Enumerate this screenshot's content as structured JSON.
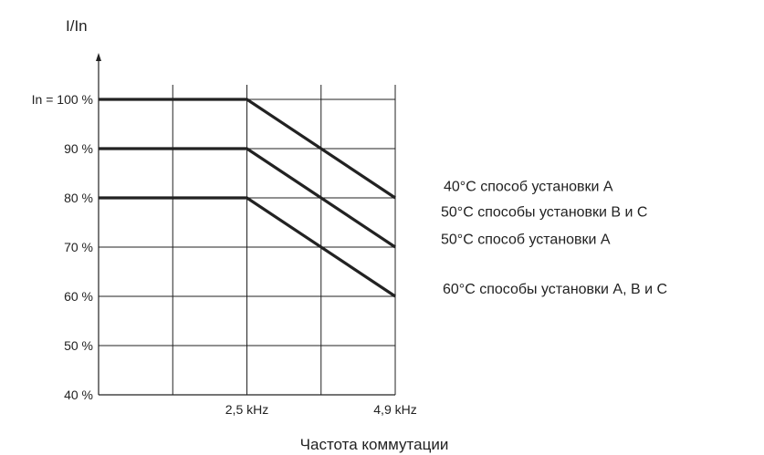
{
  "chart_data": {
    "type": "line",
    "title": "",
    "ylabel": "I/In",
    "xlabel": "Частота коммутации",
    "x_ticks": [
      {
        "label": "",
        "x": 0
      },
      {
        "label": "",
        "x": 1
      },
      {
        "label": "2,5 kHz",
        "x": 2
      },
      {
        "label": "",
        "x": 3
      },
      {
        "label": "4,9 kHz",
        "x": 4
      }
    ],
    "xlim": [
      0,
      4
    ],
    "y_ticks": [
      {
        "label": "40 %",
        "y": 40
      },
      {
        "label": "50 %",
        "y": 50
      },
      {
        "label": "60 %",
        "y": 60
      },
      {
        "label": "70 %",
        "y": 70
      },
      {
        "label": "80 %",
        "y": 80
      },
      {
        "label": "90 %",
        "y": 90
      },
      {
        "label": "In = 100 %",
        "y": 100
      }
    ],
    "ylim": [
      40,
      115
    ],
    "grid": true,
    "series": [
      {
        "x": [
          0,
          2,
          4
        ],
        "y": [
          100,
          100,
          80
        ]
      },
      {
        "x": [
          0,
          2,
          4
        ],
        "y": [
          90,
          90,
          70
        ]
      },
      {
        "x": [
          0,
          2,
          4
        ],
        "y": [
          80,
          80,
          60
        ]
      }
    ],
    "annotations": [
      {
        "text": "40°C способ установки A",
        "y_ref": 82.5
      },
      {
        "text": "50°C способы установки B и C",
        "y_ref": 77.3
      },
      {
        "text": "50°C способ установки A",
        "y_ref": 71.8
      },
      {
        "text": "60°C способы установки A, B и C",
        "y_ref": 61.7
      }
    ],
    "colors": {
      "series": "#222222",
      "grid": "#222222",
      "text": "#222222"
    }
  }
}
